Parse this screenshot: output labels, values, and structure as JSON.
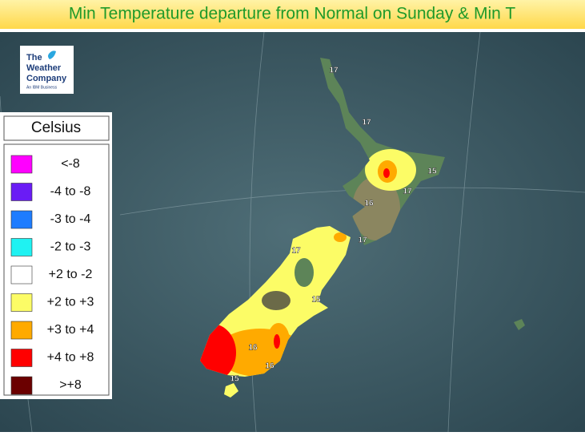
{
  "header": {
    "title": "Min Temperature departure from Normal on Sunday & Min T"
  },
  "logo": {
    "lines": [
      "The",
      "Weather",
      "Company"
    ],
    "tagline": "An IBM Business"
  },
  "legend": {
    "title": "Celsius",
    "items": [
      {
        "label": "<-8",
        "color": "#ff00ff"
      },
      {
        "label": "-4 to -8",
        "color": "#6a1cf5"
      },
      {
        "label": "-3 to -4",
        "color": "#1e7cff"
      },
      {
        "label": "-2 to -3",
        "color": "#1ff2f2"
      },
      {
        "label": "+2 to -2",
        "color": "#ffffff"
      },
      {
        "label": "+2 to +3",
        "color": "#fcfc66"
      },
      {
        "label": "+3 to +4",
        "color": "#ffaa00"
      },
      {
        "label": "+4 to +8",
        "color": "#ff0000"
      },
      {
        "label": ">+8",
        "color": "#6b0000"
      }
    ]
  },
  "map": {
    "temperature_labels": [
      17,
      17,
      15,
      17,
      16,
      17,
      17,
      15,
      16,
      16,
      15
    ]
  }
}
